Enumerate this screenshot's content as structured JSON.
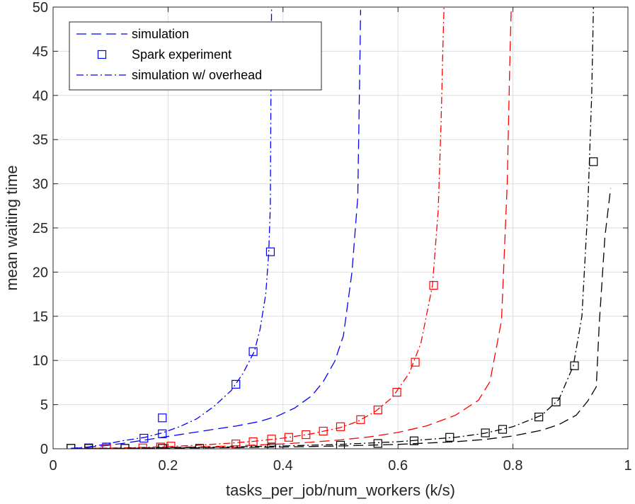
{
  "chart_data": {
    "type": "line",
    "title": "",
    "xlabel": "tasks_per_job/num_workers (k/s)",
    "ylabel": "mean waiting time",
    "xlim": [
      0,
      1
    ],
    "ylim": [
      0,
      50
    ],
    "xticks": [
      0,
      0.2,
      0.4,
      0.6,
      0.8,
      1
    ],
    "yticks": [
      0,
      5,
      10,
      15,
      20,
      25,
      30,
      35,
      40,
      45,
      50
    ],
    "xtick_labels": [
      "0",
      "0.2",
      "0.4",
      "0.6",
      "0.8",
      "1"
    ],
    "ytick_labels": [
      "0",
      "5",
      "10",
      "15",
      "20",
      "25",
      "30",
      "35",
      "40",
      "45",
      "50"
    ],
    "grid": true,
    "legend_position": "top-left",
    "legend": [
      {
        "label": "simulation",
        "style": "dashed",
        "color": "#0000ff"
      },
      {
        "label": "Spark experiment",
        "style": "square-marker",
        "color": "#0000ff"
      },
      {
        "label": "simulation w/ overhead",
        "style": "dashdot",
        "color": "#0000ff"
      }
    ],
    "series": [
      {
        "name": "simulation (blue)",
        "color": "#0000ff",
        "style": "dashed",
        "x": [
          0.031,
          0.06,
          0.09,
          0.12,
          0.15,
          0.19,
          0.24,
          0.28,
          0.32,
          0.36,
          0.39,
          0.42,
          0.45,
          0.47,
          0.49,
          0.505,
          0.52,
          0.53,
          0.534,
          0.535
        ],
        "y": [
          0.05,
          0.15,
          0.35,
          0.6,
          0.9,
          1.3,
          1.8,
          2.2,
          2.6,
          3.1,
          3.7,
          4.6,
          6.0,
          7.6,
          9.9,
          12.8,
          20,
          28.5,
          45,
          49.7
        ]
      },
      {
        "name": "Spark experiment (blue)",
        "color": "#0000ff",
        "style": "marker",
        "x": [
          0.031,
          0.062,
          0.093,
          0.158,
          0.19,
          0.19,
          0.318,
          0.348,
          0.378
        ],
        "y": [
          0.05,
          0.1,
          0.2,
          1.2,
          1.7,
          3.5,
          7.3,
          11.0,
          22.3
        ]
      },
      {
        "name": "simulation w/ overhead (blue)",
        "color": "#0000ff",
        "style": "dashdot",
        "x": [
          0.031,
          0.06,
          0.09,
          0.12,
          0.16,
          0.19,
          0.22,
          0.25,
          0.28,
          0.31,
          0.33,
          0.35,
          0.36,
          0.37,
          0.375,
          0.378,
          0.379,
          0.38
        ],
        "y": [
          0.05,
          0.2,
          0.5,
          0.9,
          1.3,
          1.8,
          2.5,
          3.4,
          4.8,
          6.6,
          8.5,
          11.0,
          13.5,
          17.5,
          22.0,
          27.5,
          40,
          50
        ]
      },
      {
        "name": "simulation (red)",
        "color": "#ff0000",
        "style": "dashed",
        "x": [
          0.05,
          0.1,
          0.15,
          0.2,
          0.25,
          0.3,
          0.35,
          0.4,
          0.45,
          0.5,
          0.55,
          0.6,
          0.65,
          0.7,
          0.74,
          0.76,
          0.78,
          0.79,
          0.795,
          0.797
        ],
        "y": [
          0.02,
          0.05,
          0.1,
          0.15,
          0.22,
          0.3,
          0.42,
          0.55,
          0.75,
          1.0,
          1.35,
          1.85,
          2.6,
          3.8,
          5.5,
          7.6,
          14.5,
          30,
          45,
          50
        ]
      },
      {
        "name": "Spark experiment (red)",
        "color": "#ff0000",
        "style": "marker",
        "x": [
          0.062,
          0.093,
          0.125,
          0.156,
          0.187,
          0.205,
          0.318,
          0.348,
          0.38,
          0.41,
          0.44,
          0.47,
          0.5,
          0.535,
          0.565,
          0.598,
          0.63,
          0.662
        ],
        "y": [
          0.05,
          0.05,
          0.05,
          0.1,
          0.2,
          0.3,
          0.55,
          0.8,
          1.1,
          1.3,
          1.6,
          2.0,
          2.5,
          3.3,
          4.4,
          6.4,
          9.8,
          18.5
        ]
      },
      {
        "name": "simulation w/ overhead (red)",
        "color": "#ff0000",
        "style": "dashdot",
        "x": [
          0.05,
          0.1,
          0.15,
          0.2,
          0.25,
          0.3,
          0.35,
          0.4,
          0.45,
          0.5,
          0.53,
          0.56,
          0.59,
          0.62,
          0.64,
          0.66,
          0.67,
          0.675,
          0.678,
          0.68
        ],
        "y": [
          0.03,
          0.08,
          0.15,
          0.25,
          0.4,
          0.6,
          0.85,
          1.2,
          1.7,
          2.4,
          3.1,
          4.2,
          5.8,
          8.6,
          12,
          18.5,
          27,
          37,
          45,
          50
        ]
      },
      {
        "name": "simulation (black)",
        "color": "#000000",
        "style": "dashed",
        "x": [
          0.031,
          0.1,
          0.2,
          0.3,
          0.4,
          0.5,
          0.6,
          0.7,
          0.75,
          0.8,
          0.85,
          0.88,
          0.91,
          0.93,
          0.945,
          0.95,
          0.96,
          0.97
        ],
        "y": [
          0.02,
          0.04,
          0.08,
          0.13,
          0.2,
          0.32,
          0.5,
          0.8,
          1.05,
          1.45,
          2.1,
          2.75,
          3.8,
          5.4,
          7.0,
          14.0,
          24.0,
          29.5
        ]
      },
      {
        "name": "Spark experiment (black)",
        "color": "#000000",
        "style": "marker",
        "x": [
          0.031,
          0.062,
          0.125,
          0.19,
          0.255,
          0.38,
          0.5,
          0.565,
          0.628,
          0.69,
          0.752,
          0.782,
          0.845,
          0.875,
          0.907,
          0.94
        ],
        "y": [
          0.05,
          0.05,
          0.05,
          0.05,
          0.05,
          0.1,
          0.4,
          0.6,
          0.9,
          1.3,
          1.8,
          2.2,
          3.6,
          5.3,
          9.4,
          32.5
        ]
      },
      {
        "name": "simulation w/ overhead (black)",
        "color": "#000000",
        "style": "dashdot",
        "x": [
          0.031,
          0.1,
          0.2,
          0.3,
          0.4,
          0.5,
          0.6,
          0.7,
          0.75,
          0.8,
          0.85,
          0.88,
          0.905,
          0.92,
          0.93,
          0.937,
          0.94
        ],
        "y": [
          0.03,
          0.06,
          0.12,
          0.2,
          0.32,
          0.5,
          0.8,
          1.3,
          1.75,
          2.5,
          3.8,
          5.6,
          9.4,
          15,
          27,
          40,
          50
        ]
      }
    ]
  }
}
